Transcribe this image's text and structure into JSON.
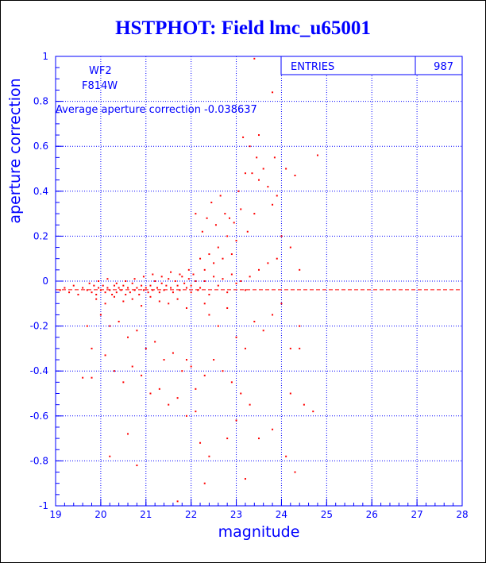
{
  "window": {
    "title": "HSTPHOT: Field lmc_u65001"
  },
  "stats_box": {
    "label": "ENTRIES",
    "value": "987"
  },
  "annotations": {
    "chip": "WF2",
    "filter": "F814W",
    "average": "Average aperture correction -0.038637"
  },
  "colors": {
    "axes": "#0000ff",
    "grid": "#0000ff",
    "points": "#ff0000",
    "mean_line": "#ff0000",
    "title": "#0000ff"
  },
  "chart_data": {
    "type": "scatter",
    "title": "HSTPHOT: Field lmc_u65001",
    "xlabel": "magnitude",
    "ylabel": "aperture correction",
    "xlim": [
      19,
      28
    ],
    "ylim": [
      -1,
      1
    ],
    "x_ticks": [
      19,
      20,
      21,
      22,
      23,
      24,
      25,
      26,
      27,
      28
    ],
    "x_tick_labels": [
      "19",
      "20",
      "21",
      "22",
      "23",
      "24",
      "25",
      "26",
      "27",
      "28"
    ],
    "y_ticks": [
      -1,
      -0.8,
      -0.6,
      -0.4,
      -0.2,
      0,
      0.2,
      0.4,
      0.6,
      0.8,
      1
    ],
    "y_tick_labels": [
      "-1",
      "-0.8",
      "-0.6",
      "-0.4",
      "-0.2",
      "0",
      "0.2",
      "0.4",
      "0.6",
      "0.8",
      "1"
    ],
    "grid": true,
    "mean_value": -0.038637,
    "entries": 987,
    "points": [
      [
        19.1,
        -0.04
      ],
      [
        19.2,
        -0.03
      ],
      [
        19.3,
        -0.05
      ],
      [
        19.4,
        -0.02
      ],
      [
        19.5,
        -0.06
      ],
      [
        19.6,
        -0.03
      ],
      [
        19.7,
        -0.04
      ],
      [
        19.75,
        -0.01
      ],
      [
        19.8,
        -0.05
      ],
      [
        19.85,
        -0.02
      ],
      [
        19.9,
        -0.06
      ],
      [
        19.95,
        -0.03
      ],
      [
        20.0,
        -0.04
      ],
      [
        20.05,
        -0.02
      ],
      [
        20.1,
        -0.05
      ],
      [
        20.15,
        -0.03
      ],
      [
        20.2,
        -0.04
      ],
      [
        20.25,
        -0.06
      ],
      [
        20.3,
        -0.02
      ],
      [
        20.35,
        -0.05
      ],
      [
        20.4,
        -0.03
      ],
      [
        20.45,
        -0.04
      ],
      [
        20.5,
        -0.02
      ],
      [
        20.55,
        -0.06
      ],
      [
        20.6,
        -0.03
      ],
      [
        20.65,
        -0.05
      ],
      [
        20.7,
        -0.01
      ],
      [
        20.75,
        -0.04
      ],
      [
        20.8,
        -0.03
      ],
      [
        20.85,
        -0.06
      ],
      [
        20.9,
        -0.02
      ],
      [
        20.95,
        -0.04
      ],
      [
        21.0,
        -0.03
      ],
      [
        21.05,
        -0.05
      ],
      [
        21.1,
        -0.02
      ],
      [
        21.15,
        -0.04
      ],
      [
        21.2,
        0.0
      ],
      [
        21.25,
        -0.03
      ],
      [
        21.3,
        -0.05
      ],
      [
        21.35,
        -0.01
      ],
      [
        21.4,
        -0.04
      ],
      [
        21.45,
        -0.02
      ],
      [
        21.5,
        0.01
      ],
      [
        21.55,
        -0.03
      ],
      [
        21.6,
        -0.05
      ],
      [
        21.65,
        0.0
      ],
      [
        21.7,
        -0.02
      ],
      [
        21.75,
        -0.04
      ],
      [
        21.8,
        0.02
      ],
      [
        21.85,
        -0.01
      ],
      [
        21.9,
        -0.03
      ],
      [
        21.95,
        0.01
      ],
      [
        22.0,
        -0.02
      ],
      [
        22.05,
        0.03
      ],
      [
        22.1,
        0.0
      ],
      [
        22.15,
        -0.04
      ],
      [
        19.9,
        -0.08
      ],
      [
        20.1,
        -0.1
      ],
      [
        20.3,
        -0.07
      ],
      [
        20.5,
        -0.09
      ],
      [
        20.7,
        -0.08
      ],
      [
        20.9,
        -0.11
      ],
      [
        21.1,
        -0.07
      ],
      [
        21.3,
        -0.09
      ],
      [
        21.5,
        -0.1
      ],
      [
        21.7,
        -0.08
      ],
      [
        21.9,
        -0.12
      ],
      [
        19.95,
        0.0
      ],
      [
        20.15,
        0.01
      ],
      [
        20.35,
        -0.01
      ],
      [
        20.55,
        0.0
      ],
      [
        20.75,
        0.01
      ],
      [
        20.95,
        0.02
      ],
      [
        21.15,
        0.03
      ],
      [
        21.35,
        0.02
      ],
      [
        21.55,
        0.04
      ],
      [
        21.75,
        0.03
      ],
      [
        21.95,
        0.05
      ],
      [
        20.0,
        -0.15
      ],
      [
        20.2,
        -0.2
      ],
      [
        20.4,
        -0.18
      ],
      [
        20.6,
        -0.25
      ],
      [
        20.8,
        -0.22
      ],
      [
        21.0,
        -0.3
      ],
      [
        21.2,
        -0.27
      ],
      [
        21.4,
        -0.35
      ],
      [
        21.6,
        -0.32
      ],
      [
        21.8,
        -0.4
      ],
      [
        22.0,
        -0.38
      ],
      [
        19.7,
        -0.2
      ],
      [
        19.8,
        -0.3
      ],
      [
        20.1,
        -0.33
      ],
      [
        20.3,
        -0.4
      ],
      [
        20.5,
        -0.45
      ],
      [
        20.7,
        -0.38
      ],
      [
        20.9,
        -0.42
      ],
      [
        21.1,
        -0.5
      ],
      [
        21.3,
        -0.48
      ],
      [
        21.5,
        -0.55
      ],
      [
        21.7,
        -0.52
      ],
      [
        21.9,
        -0.6
      ],
      [
        22.1,
        -0.58
      ],
      [
        19.6,
        -0.43
      ],
      [
        19.8,
        -0.43
      ],
      [
        20.6,
        -0.68
      ],
      [
        20.2,
        -0.78
      ],
      [
        20.8,
        -0.82
      ],
      [
        21.7,
        -0.98
      ],
      [
        22.2,
        -0.72
      ],
      [
        22.4,
        -0.78
      ],
      [
        23.2,
        -0.88
      ],
      [
        23.8,
        -0.66
      ],
      [
        22.2,
        0.1
      ],
      [
        22.3,
        0.05
      ],
      [
        22.4,
        0.12
      ],
      [
        22.5,
        0.08
      ],
      [
        22.6,
        0.15
      ],
      [
        22.7,
        0.1
      ],
      [
        22.8,
        0.2
      ],
      [
        22.9,
        0.12
      ],
      [
        23.0,
        0.18
      ],
      [
        22.25,
        0.22
      ],
      [
        22.35,
        0.28
      ],
      [
        22.55,
        0.25
      ],
      [
        22.75,
        0.3
      ],
      [
        22.95,
        0.26
      ],
      [
        23.1,
        0.32
      ],
      [
        22.1,
        0.3
      ],
      [
        22.45,
        0.35
      ],
      [
        22.65,
        0.38
      ],
      [
        22.85,
        0.28
      ],
      [
        23.05,
        0.4
      ],
      [
        23.25,
        0.22
      ],
      [
        23.4,
        0.3
      ],
      [
        23.5,
        0.45
      ],
      [
        23.6,
        0.5
      ],
      [
        23.2,
        0.48
      ],
      [
        23.45,
        0.55
      ],
      [
        23.7,
        0.42
      ],
      [
        23.8,
        0.34
      ],
      [
        23.9,
        0.38
      ],
      [
        24.0,
        0.2
      ],
      [
        24.2,
        0.15
      ],
      [
        24.4,
        0.05
      ],
      [
        23.3,
        0.6
      ],
      [
        23.5,
        0.65
      ],
      [
        23.35,
        0.48
      ],
      [
        23.15,
        0.64
      ],
      [
        23.85,
        0.55
      ],
      [
        24.1,
        0.5
      ],
      [
        24.3,
        0.47
      ],
      [
        24.8,
        0.56
      ],
      [
        23.4,
        0.99
      ],
      [
        23.8,
        0.84
      ],
      [
        22.3,
        -0.1
      ],
      [
        22.4,
        -0.15
      ],
      [
        22.6,
        -0.2
      ],
      [
        22.8,
        -0.12
      ],
      [
        23.0,
        -0.25
      ],
      [
        23.2,
        -0.3
      ],
      [
        23.4,
        -0.18
      ],
      [
        23.6,
        -0.22
      ],
      [
        23.8,
        -0.15
      ],
      [
        24.0,
        -0.1
      ],
      [
        24.2,
        -0.3
      ],
      [
        24.4,
        -0.2
      ],
      [
        22.5,
        -0.35
      ],
      [
        22.7,
        -0.4
      ],
      [
        22.9,
        -0.45
      ],
      [
        23.1,
        -0.5
      ],
      [
        23.3,
        -0.55
      ],
      [
        22.3,
        -0.42
      ],
      [
        22.1,
        -0.48
      ],
      [
        21.9,
        -0.35
      ],
      [
        24.2,
        -0.5
      ],
      [
        24.5,
        -0.55
      ],
      [
        24.7,
        -0.58
      ],
      [
        24.4,
        -0.3
      ],
      [
        23.0,
        -0.62
      ],
      [
        22.8,
        -0.7
      ],
      [
        23.5,
        -0.7
      ],
      [
        24.1,
        -0.78
      ],
      [
        24.3,
        -0.85
      ],
      [
        22.3,
        -0.9
      ],
      [
        22.0,
        -0.05
      ],
      [
        22.2,
        -0.03
      ],
      [
        22.4,
        -0.06
      ],
      [
        22.6,
        -0.02
      ],
      [
        22.8,
        -0.05
      ],
      [
        23.0,
        -0.01
      ],
      [
        23.2,
        -0.04
      ],
      [
        22.3,
        0.0
      ],
      [
        22.5,
        0.02
      ],
      [
        22.7,
        0.01
      ],
      [
        22.9,
        0.03
      ],
      [
        23.1,
        0.0
      ],
      [
        23.3,
        0.02
      ],
      [
        23.5,
        0.05
      ],
      [
        23.7,
        0.08
      ],
      [
        23.9,
        0.1
      ]
    ]
  }
}
